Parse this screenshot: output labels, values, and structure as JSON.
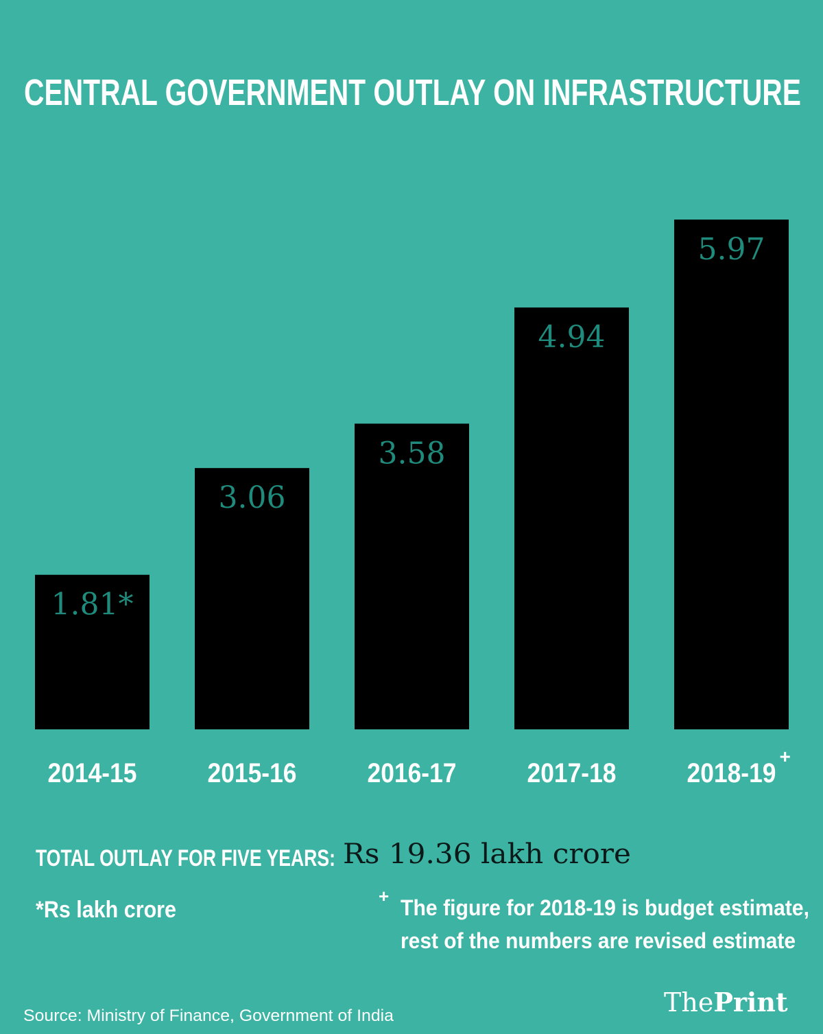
{
  "chart_data": {
    "type": "bar",
    "title": "CENTRAL GOVERNMENT OUTLAY ON INFRASTRUCTURE",
    "categories": [
      "2014-15",
      "2015-16",
      "2016-17",
      "2017-18",
      "2018-19"
    ],
    "category_notes": [
      null,
      null,
      null,
      null,
      "+"
    ],
    "values": [
      1.81,
      3.06,
      3.58,
      4.94,
      5.97
    ],
    "value_labels": [
      "1.81*",
      "3.06",
      "3.58",
      "4.94",
      "5.97"
    ],
    "color": "#000000",
    "label_color": "#1f8b7c",
    "total_label": "TOTAL OUTLAY FOR FIVE YEARS:",
    "total_value": "Rs 19.36 lakh crore",
    "unit_note": "*Rs lakh crore",
    "footnote_marker": "+",
    "footnote": [
      "The figure for 2018-19 is budget estimate,",
      "rest of the numbers are revised estimate"
    ],
    "source": "Source: Ministry of Finance, Government of India",
    "brand": [
      "The",
      "Print"
    ]
  }
}
